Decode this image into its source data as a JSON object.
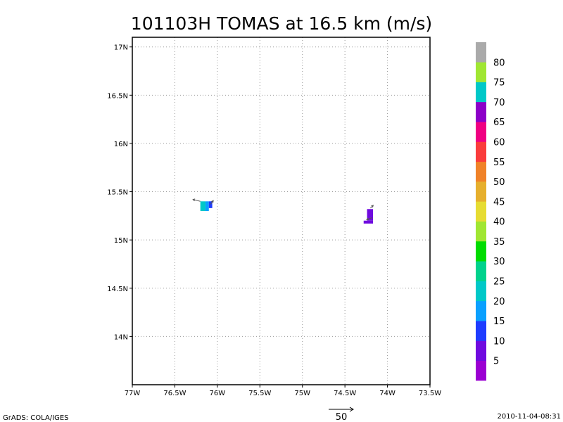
{
  "chart_data": {
    "type": "heatmap",
    "title": "101103H TOMAS at 16.5 km (m/s)",
    "xlabel": "",
    "ylabel": "",
    "xlim": [
      -77.0,
      -73.5
    ],
    "ylim": [
      13.5,
      17.1
    ],
    "grid": true,
    "x_ticks": [
      {
        "value": -77.0,
        "label": "77W"
      },
      {
        "value": -76.5,
        "label": "76.5W"
      },
      {
        "value": -76.0,
        "label": "76W"
      },
      {
        "value": -75.5,
        "label": "75.5W"
      },
      {
        "value": -75.0,
        "label": "75W"
      },
      {
        "value": -74.5,
        "label": "74.5W"
      },
      {
        "value": -74.0,
        "label": "74W"
      },
      {
        "value": -73.5,
        "label": "73.5W"
      }
    ],
    "y_ticks": [
      {
        "value": 14.0,
        "label": "14N"
      },
      {
        "value": 14.5,
        "label": "14.5N"
      },
      {
        "value": 15.0,
        "label": "15N"
      },
      {
        "value": 15.5,
        "label": "15.5N"
      },
      {
        "value": 16.0,
        "label": "16N"
      },
      {
        "value": 16.5,
        "label": "16.5N"
      },
      {
        "value": 17.0,
        "label": "17N"
      }
    ],
    "cells": [
      {
        "lon0": -76.2,
        "lon1": -76.14,
        "lat0": 15.3,
        "lat1": 15.4,
        "value": 22
      },
      {
        "lon0": -76.14,
        "lon1": -76.1,
        "lat0": 15.3,
        "lat1": 15.4,
        "value": 17
      },
      {
        "lon0": -76.1,
        "lon1": -76.06,
        "lat0": 15.33,
        "lat1": 15.4,
        "value": 12
      },
      {
        "lon0": -74.24,
        "lon1": -74.17,
        "lat0": 15.2,
        "lat1": 15.32,
        "value": 8
      },
      {
        "lon0": -74.28,
        "lon1": -74.17,
        "lat0": 15.17,
        "lat1": 15.2,
        "value": 8
      }
    ],
    "vectors": [
      {
        "lon": -76.2,
        "lat": 15.4,
        "u": -8,
        "v": 2
      },
      {
        "lon": -76.08,
        "lat": 15.37,
        "u": 3,
        "v": 4
      },
      {
        "lon": -74.2,
        "lat": 15.33,
        "u": 3,
        "v": 3
      },
      {
        "lon": -74.18,
        "lat": 15.23,
        "u": -6,
        "v": -2
      }
    ],
    "colorbar": {
      "colors": [
        "#9b00d2",
        "#6f0adf",
        "#1e3cff",
        "#0aa0ff",
        "#00c8c8",
        "#00d28c",
        "#00dc00",
        "#a0e632",
        "#e6dc32",
        "#e6af2d",
        "#f08228",
        "#fa3c3c",
        "#f00082",
        "#8c00c8",
        "#00c8c8",
        "#a0e632",
        "#aaaaaa"
      ],
      "labels": [
        "5",
        "10",
        "15",
        "20",
        "25",
        "30",
        "35",
        "40",
        "45",
        "50",
        "55",
        "60",
        "65",
        "70",
        "75",
        "80"
      ]
    },
    "reference_vector": {
      "label": "50"
    }
  },
  "footer": {
    "left": "GrADS: COLA/IGES",
    "right": "2010-11-04-08:31"
  }
}
